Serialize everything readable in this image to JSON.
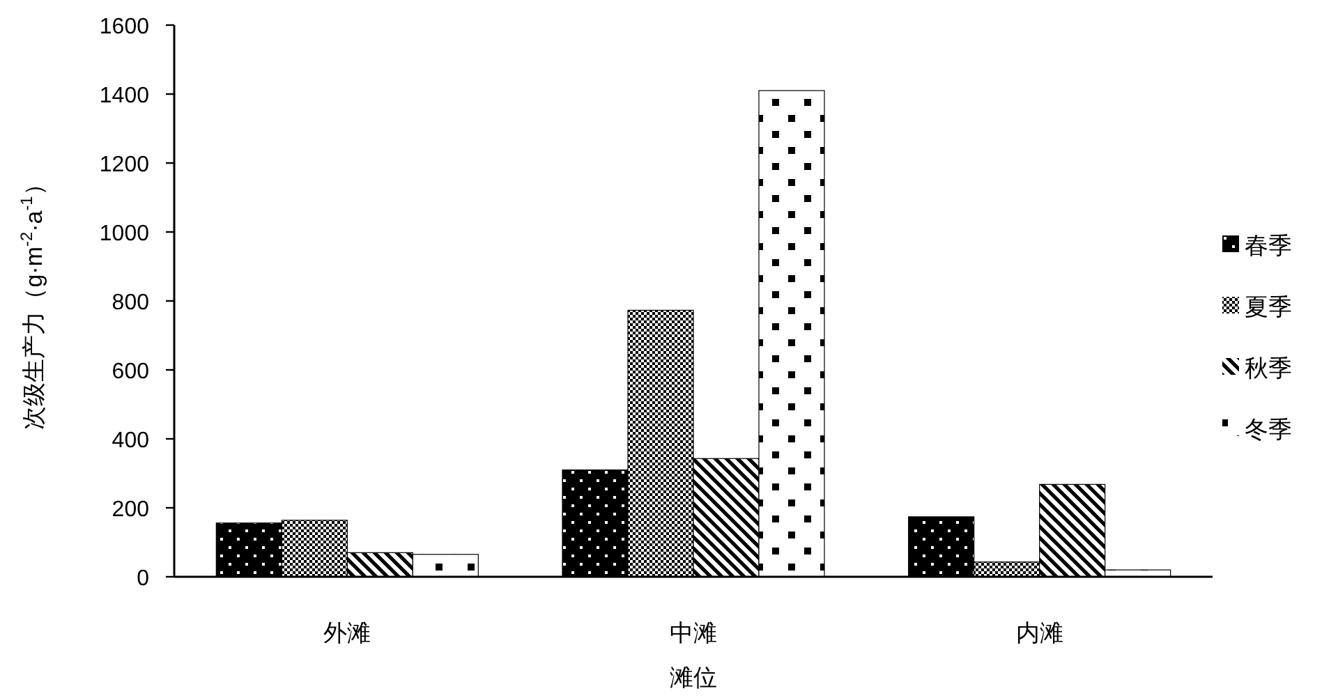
{
  "chart_data": {
    "type": "bar",
    "xlabel": "滩位",
    "ylabel": "次级生产力（g·m$^{-2}$·a$^{-1}$）",
    "categories": [
      "外滩",
      "中滩",
      "内滩"
    ],
    "series": [
      {
        "name": "春季",
        "color": "#000000",
        "values": [
          156,
          310,
          174
        ]
      },
      {
        "name": "夏季",
        "color": "#000000",
        "values": [
          164,
          773,
          43
        ]
      },
      {
        "name": "秋季",
        "color": "#000000",
        "values": [
          70,
          343,
          268
        ]
      },
      {
        "name": "冬季",
        "color": "#000000",
        "values": [
          65,
          1410,
          20
        ]
      }
    ],
    "ylim": [
      0,
      1600
    ],
    "yticks": [
      0,
      200,
      400,
      600,
      800,
      1000,
      1200,
      1400,
      1600
    ],
    "grid": false,
    "legend": "right"
  }
}
